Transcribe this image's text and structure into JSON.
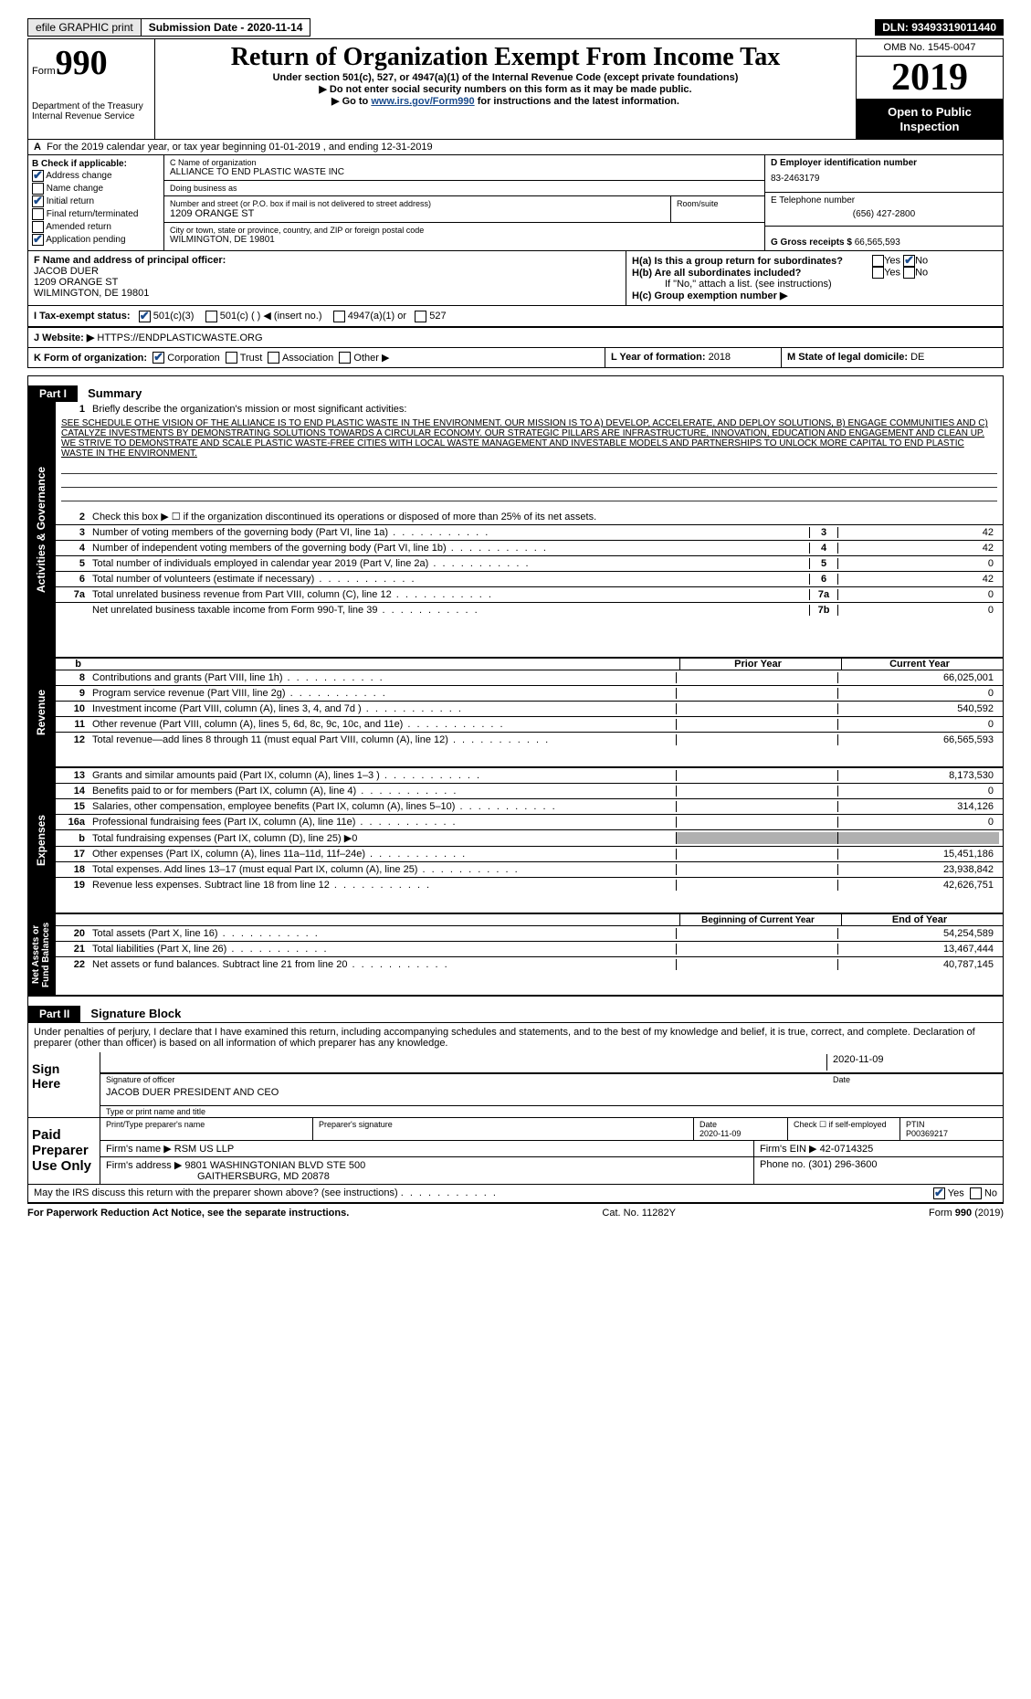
{
  "topbar": {
    "efile": "efile GRAPHIC print",
    "subdate_lbl": "Submission Date - 2020-11-14",
    "dln": "DLN: 93493319011440"
  },
  "header": {
    "form_word": "Form",
    "form_num": "990",
    "title": "Return of Organization Exempt From Income Tax",
    "sub1": "Under section 501(c), 527, or 4947(a)(1) of the Internal Revenue Code (except private foundations)",
    "sub2": "▶ Do not enter social security numbers on this form as it may be made public.",
    "sub3_pre": "▶ Go to ",
    "sub3_link": "www.irs.gov/Form990",
    "sub3_post": " for instructions and the latest information.",
    "dept": "Department of the Treasury\nInternal Revenue Service",
    "omb": "OMB No. 1545-0047",
    "year": "2019",
    "open": "Open to Public\nInspection"
  },
  "rowA": "For the 2019 calendar year, or tax year beginning 01-01-2019   , and ending 12-31-2019",
  "boxB": {
    "hdr": "B Check if applicable:",
    "items": [
      "Address change",
      "Name change",
      "Initial return",
      "Final return/terminated",
      "Amended return",
      "Application pending"
    ],
    "checked": [
      true,
      false,
      true,
      false,
      false,
      true
    ]
  },
  "boxC": {
    "c_lbl": "C Name of organization",
    "c_val": "ALLIANCE TO END PLASTIC WASTE INC",
    "dba_lbl": "Doing business as",
    "dba_val": "",
    "addr_lbl": "Number and street (or P.O. box if mail is not delivered to street address)",
    "addr_val": "1209 ORANGE ST",
    "room_lbl": "Room/suite",
    "city_lbl": "City or town, state or province, country, and ZIP or foreign postal code",
    "city_val": "WILMINGTON, DE  19801"
  },
  "boxD": {
    "d_lbl": "D Employer identification number",
    "d_val": "83-2463179",
    "e_lbl": "E Telephone number",
    "e_val": "(656) 427-2800",
    "g_lbl": "G Gross receipts $",
    "g_val": "66,565,593"
  },
  "boxF": {
    "lbl": "F  Name and address of principal officer:",
    "name": "JACOB DUER",
    "addr1": "1209 ORANGE ST",
    "addr2": "WILMINGTON, DE  19801"
  },
  "boxH": {
    "ha": "H(a)  Is this a group return for subordinates?",
    "hb": "H(b)  Are all subordinates included?",
    "hb2": "If \"No,\" attach a list. (see instructions)",
    "hc": "H(c)  Group exemption number ▶",
    "yes": "Yes",
    "no": "No"
  },
  "rowI": {
    "lbl": "I   Tax-exempt status:",
    "o1": "501(c)(3)",
    "o2": "501(c) (  ) ◀ (insert no.)",
    "o3": "4947(a)(1) or",
    "o4": "527"
  },
  "rowJ": {
    "lbl": "J   Website: ▶",
    "val": "HTTPS://ENDPLASTICWASTE.ORG"
  },
  "rowK": {
    "lbl": "K Form of organization:",
    "o1": "Corporation",
    "o2": "Trust",
    "o3": "Association",
    "o4": "Other ▶",
    "l_lbl": "L Year of formation:",
    "l_val": "2018",
    "m_lbl": "M State of legal domicile:",
    "m_val": "DE"
  },
  "part1": {
    "hdr": "Part I",
    "title": "Summary",
    "vtab1": "Activities & Governance",
    "vtab2": "Revenue",
    "vtab3": "Expenses",
    "vtab4": "Net Assets or\nFund Balances",
    "l1": "Briefly describe the organization's mission or most significant activities:",
    "mission": "SEE SCHEDULE OTHE VISION OF THE ALLIANCE IS TO END PLASTIC WASTE IN THE ENVIRONMENT. OUR MISSION IS TO A) DEVELOP, ACCELERATE, AND DEPLOY SOLUTIONS, B) ENGAGE COMMUNITIES AND C) CATALYZE INVESTMENTS BY DEMONSTRATING SOLUTIONS TOWARDS A CIRCULAR ECONOMY. OUR STRATEGIC PILLARS ARE INFRASTRUCTURE, INNOVATION, EDUCATION AND ENGAGEMENT AND CLEAN UP. WE STRIVE TO DEMONSTRATE AND SCALE PLASTIC WASTE-FREE CITIES WITH LOCAL WASTE MANAGEMENT AND INVESTABLE MODELS AND PARTNERSHIPS TO UNLOCK MORE CAPITAL TO END PLASTIC WASTE IN THE ENVIRONMENT.",
    "l2": "Check this box ▶ ☐ if the organization discontinued its operations or disposed of more than 25% of its net assets.",
    "lines_a": [
      {
        "n": "3",
        "t": "Number of voting members of the governing body (Part VI, line 1a)",
        "b": "3",
        "v": "42"
      },
      {
        "n": "4",
        "t": "Number of independent voting members of the governing body (Part VI, line 1b)",
        "b": "4",
        "v": "42"
      },
      {
        "n": "5",
        "t": "Total number of individuals employed in calendar year 2019 (Part V, line 2a)",
        "b": "5",
        "v": "0"
      },
      {
        "n": "6",
        "t": "Total number of volunteers (estimate if necessary)",
        "b": "6",
        "v": "42"
      },
      {
        "n": "7a",
        "t": "Total unrelated business revenue from Part VIII, column (C), line 12",
        "b": "7a",
        "v": "0"
      },
      {
        "n": "",
        "t": "Net unrelated business taxable income from Form 990-T, line 39",
        "b": "7b",
        "v": "0"
      }
    ],
    "col_hdr_b": "b",
    "col_prior": "Prior Year",
    "col_curr": "Current Year",
    "lines_rev": [
      {
        "n": "8",
        "t": "Contributions and grants (Part VIII, line 1h)",
        "p": "",
        "c": "66,025,001"
      },
      {
        "n": "9",
        "t": "Program service revenue (Part VIII, line 2g)",
        "p": "",
        "c": "0"
      },
      {
        "n": "10",
        "t": "Investment income (Part VIII, column (A), lines 3, 4, and 7d )",
        "p": "",
        "c": "540,592"
      },
      {
        "n": "11",
        "t": "Other revenue (Part VIII, column (A), lines 5, 6d, 8c, 9c, 10c, and 11e)",
        "p": "",
        "c": "0"
      },
      {
        "n": "12",
        "t": "Total revenue—add lines 8 through 11 (must equal Part VIII, column (A), line 12)",
        "p": "",
        "c": "66,565,593"
      }
    ],
    "lines_exp": [
      {
        "n": "13",
        "t": "Grants and similar amounts paid (Part IX, column (A), lines 1–3 )",
        "p": "",
        "c": "8,173,530"
      },
      {
        "n": "14",
        "t": "Benefits paid to or for members (Part IX, column (A), line 4)",
        "p": "",
        "c": "0"
      },
      {
        "n": "15",
        "t": "Salaries, other compensation, employee benefits (Part IX, column (A), lines 5–10)",
        "p": "",
        "c": "314,126"
      },
      {
        "n": "16a",
        "t": "Professional fundraising fees (Part IX, column (A), line 11e)",
        "p": "",
        "c": "0"
      },
      {
        "n": "b",
        "t": "Total fundraising expenses (Part IX, column (D), line 25) ▶0",
        "p": "SHADE",
        "c": "SHADE"
      },
      {
        "n": "17",
        "t": "Other expenses (Part IX, column (A), lines 11a–11d, 11f–24e)",
        "p": "",
        "c": "15,451,186"
      },
      {
        "n": "18",
        "t": "Total expenses. Add lines 13–17 (must equal Part IX, column (A), line 25)",
        "p": "",
        "c": "23,938,842"
      },
      {
        "n": "19",
        "t": "Revenue less expenses. Subtract line 18 from line 12",
        "p": "",
        "c": "42,626,751"
      }
    ],
    "col_beg": "Beginning of Current Year",
    "col_end": "End of Year",
    "lines_net": [
      {
        "n": "20",
        "t": "Total assets (Part X, line 16)",
        "p": "",
        "c": "54,254,589"
      },
      {
        "n": "21",
        "t": "Total liabilities (Part X, line 26)",
        "p": "",
        "c": "13,467,444"
      },
      {
        "n": "22",
        "t": "Net assets or fund balances. Subtract line 21 from line 20",
        "p": "",
        "c": "40,787,145"
      }
    ]
  },
  "part2": {
    "hdr": "Part II",
    "title": "Signature Block",
    "penalties": "Under penalties of perjury, I declare that I have examined this return, including accompanying schedules and statements, and to the best of my knowledge and belief, it is true, correct, and complete. Declaration of preparer (other than officer) is based on all information of which preparer has any knowledge.",
    "sign_here": "Sign\nHere",
    "sig_of": "Signature of officer",
    "date": "2020-11-09",
    "date_lbl": "Date",
    "name_title": "JACOB DUER PRESIDENT AND CEO",
    "name_lbl": "Type or print name and title",
    "paid": "Paid\nPreparer\nUse Only",
    "p1": "Print/Type preparer's name",
    "p2": "Preparer's signature",
    "p3": "Date",
    "p3v": "2020-11-09",
    "p4": "Check ☐ if self-employed",
    "p5": "PTIN",
    "p5v": "P00369217",
    "firm_name_lbl": "Firm's name    ▶",
    "firm_name": "RSM US LLP",
    "firm_ein_lbl": "Firm's EIN ▶",
    "firm_ein": "42-0714325",
    "firm_addr_lbl": "Firm's address ▶",
    "firm_addr1": "9801 WASHINGTONIAN BLVD STE 500",
    "firm_addr2": "GAITHERSBURG, MD  20878",
    "phone_lbl": "Phone no.",
    "phone": "(301) 296-3600",
    "may": "May the IRS discuss this return with the preparer shown above? (see instructions)",
    "yes": "Yes",
    "no": "No"
  },
  "footer": {
    "left": "For Paperwork Reduction Act Notice, see the separate instructions.",
    "mid": "Cat. No. 11282Y",
    "right_pre": "Form ",
    "right_b": "990",
    "right_post": " (2019)"
  }
}
